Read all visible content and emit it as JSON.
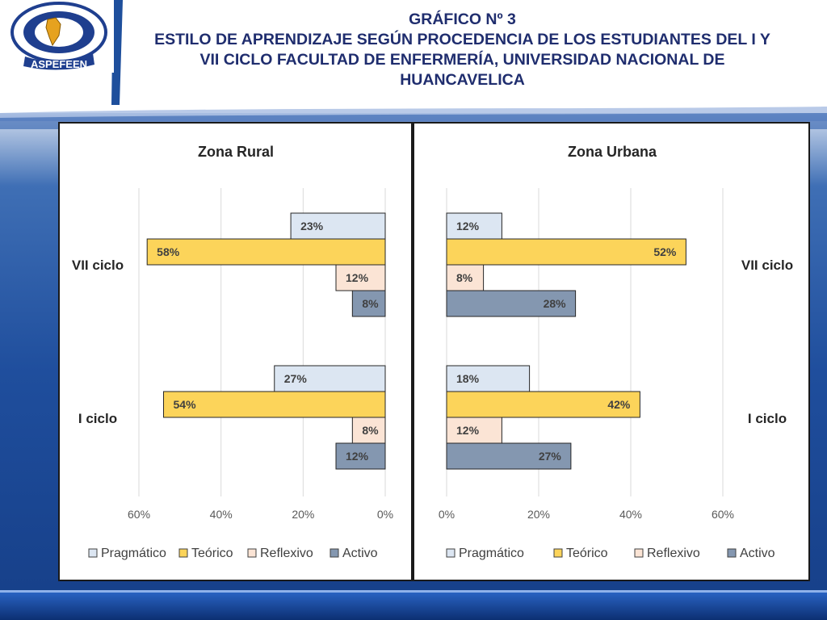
{
  "header": {
    "logo_text": "ASPEFEEN",
    "title_line1": "GRÁFICO Nº 3",
    "title_line2": "ESTILO DE APRENDIZAJE SEGÚN PROCEDENCIA DE LOS ESTUDIANTES DEL I Y",
    "title_line3": "VII CICLO FACULTAD DE ENFERMERÍA, UNIVERSIDAD NACIONAL DE",
    "title_line4": "HUANCAVELICA"
  },
  "colors": {
    "Pragmático": "#dce6f2",
    "Teórico": "#fcd45a",
    "Reflexivo": "#fbe4d5",
    "Activo": "#8497b0",
    "header_text": "#1f2d6e",
    "slide_bg": "#1e4f9c"
  },
  "chart_data": [
    {
      "type": "bar",
      "orientation": "horizontal",
      "title": "Zona Rural",
      "direction": "reversed",
      "categories": [
        "VII ciclo",
        "I ciclo"
      ],
      "series": [
        {
          "name": "Pragmático",
          "values": [
            23,
            27
          ],
          "labels": [
            "23%",
            "27%"
          ]
        },
        {
          "name": "Teórico",
          "values": [
            58,
            54
          ],
          "labels": [
            "58%",
            "54%"
          ]
        },
        {
          "name": "Reflexivo",
          "values": [
            12,
            8
          ],
          "labels": [
            "12%",
            "8%"
          ]
        },
        {
          "name": "Activo",
          "values": [
            8,
            12
          ],
          "labels": [
            "8%",
            "12%"
          ]
        }
      ],
      "xlim": [
        0,
        60
      ],
      "ticks": [
        "60%",
        "40%",
        "20%",
        "0%"
      ],
      "legend": "bottom",
      "grid": true
    },
    {
      "type": "bar",
      "orientation": "horizontal",
      "title": "Zona Urbana",
      "direction": "normal",
      "categories": [
        "VII ciclo",
        "I ciclo"
      ],
      "series": [
        {
          "name": "Pragmático",
          "values": [
            12,
            18
          ],
          "labels": [
            "12%",
            "18%"
          ]
        },
        {
          "name": "Teórico",
          "values": [
            52,
            42
          ],
          "labels": [
            "52%",
            "42%"
          ]
        },
        {
          "name": "Reflexivo",
          "values": [
            8,
            12
          ],
          "labels": [
            "8%",
            "12%"
          ]
        },
        {
          "name": "Activo",
          "values": [
            28,
            27
          ],
          "labels": [
            "28%",
            "27%"
          ]
        }
      ],
      "xlim": [
        0,
        60
      ],
      "ticks": [
        "0%",
        "20%",
        "40%",
        "60%"
      ],
      "legend": "bottom",
      "grid": true
    }
  ]
}
